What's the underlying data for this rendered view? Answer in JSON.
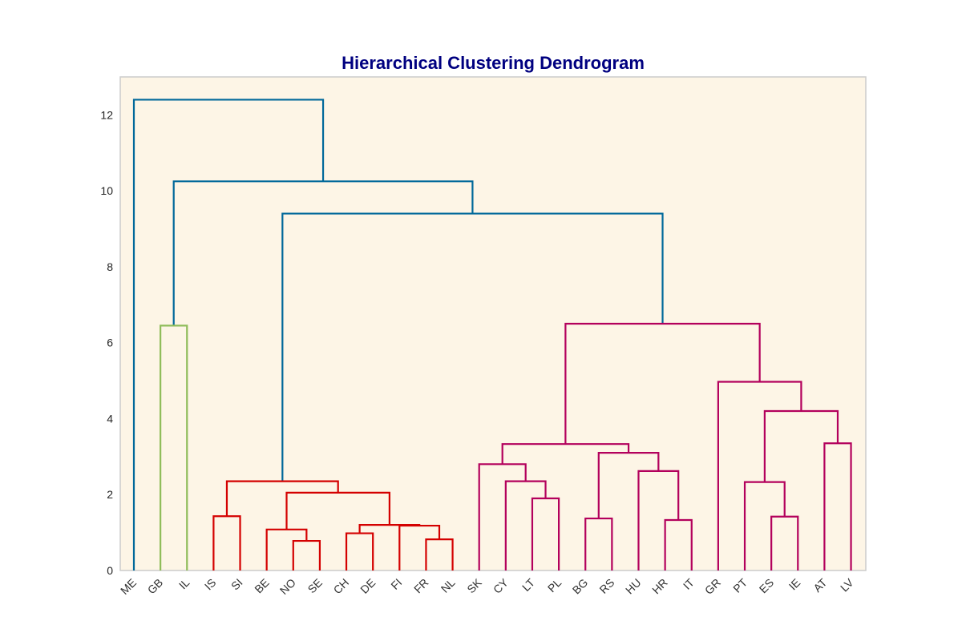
{
  "chart_data": {
    "type": "dendrogram",
    "title": "Hierarchical Clustering Dendrogram",
    "xlabel": "",
    "ylabel": "",
    "ylim": [
      0,
      13
    ],
    "yticks": [
      0,
      2,
      4,
      6,
      8,
      10,
      12
    ],
    "grid": false,
    "background_color": "#fdf5e6",
    "leaves": [
      "ME",
      "GB",
      "IL",
      "IS",
      "SI",
      "BE",
      "NO",
      "SE",
      "CH",
      "DE",
      "FI",
      "FR",
      "NL",
      "SK",
      "CY",
      "LT",
      "PL",
      "BG",
      "RS",
      "HU",
      "HR",
      "IT",
      "GR",
      "PT",
      "ES",
      "IE",
      "AT",
      "LV"
    ],
    "cluster_colors": {
      "green": "#8fbc5a",
      "red": "#d40000",
      "magenta": "#b3005c",
      "above_threshold": "#00689a"
    },
    "merges": [
      {
        "left": "leaf:ME",
        "right": "c2",
        "height": 12.4,
        "color": "above_threshold"
      },
      {
        "id": "c2",
        "left": "c_gbil",
        "right": "c3",
        "height": 10.25,
        "color": "above_threshold"
      },
      {
        "id": "c3",
        "left": "c_red",
        "right": "c_mag",
        "height": 9.4,
        "color": "above_threshold"
      },
      {
        "id": "c_gbil",
        "left": "leaf:GB",
        "right": "leaf:IL",
        "height": 6.45,
        "color": "green"
      },
      {
        "id": "c_red",
        "left": "c_issi",
        "right": "c_red2",
        "height": 2.35,
        "color": "red"
      },
      {
        "id": "c_issi",
        "left": "leaf:IS",
        "right": "leaf:SI",
        "height": 1.43,
        "color": "red"
      },
      {
        "id": "c_red2",
        "left": "c_benose",
        "right": "c_red3",
        "height": 2.05,
        "color": "red"
      },
      {
        "id": "c_benose",
        "left": "leaf:BE",
        "right": "c_nose",
        "height": 1.08,
        "color": "red"
      },
      {
        "id": "c_nose",
        "left": "leaf:NO",
        "right": "leaf:SE",
        "height": 0.78,
        "color": "red"
      },
      {
        "id": "c_red3",
        "left": "c_chde",
        "right": "c_red4",
        "height": 1.2,
        "color": "red"
      },
      {
        "id": "c_chde",
        "left": "leaf:CH",
        "right": "leaf:DE",
        "height": 0.98,
        "color": "red"
      },
      {
        "id": "c_red4",
        "left": "leaf:FI",
        "right": "c_frnl",
        "height": 1.18,
        "color": "red"
      },
      {
        "id": "c_frnl",
        "left": "leaf:FR",
        "right": "leaf:NL",
        "height": 0.82,
        "color": "red"
      },
      {
        "id": "c_mag",
        "left": "c_magA",
        "right": "c_magB",
        "height": 6.5,
        "color": "magenta"
      },
      {
        "id": "c_magA",
        "left": "c_skclt",
        "right": "c_east",
        "height": 3.33,
        "color": "magenta"
      },
      {
        "id": "c_skclt",
        "left": "leaf:SK",
        "right": "c_cylt",
        "height": 2.8,
        "color": "magenta"
      },
      {
        "id": "c_cylt",
        "left": "leaf:CY",
        "right": "c_ltpl",
        "height": 2.35,
        "color": "magenta"
      },
      {
        "id": "c_ltpl",
        "left": "leaf:LT",
        "right": "leaf:PL",
        "height": 1.9,
        "color": "magenta"
      },
      {
        "id": "c_east",
        "left": "c_bgrs",
        "right": "c_huit",
        "height": 3.1,
        "color": "magenta"
      },
      {
        "id": "c_bgrs",
        "left": "leaf:BG",
        "right": "leaf:RS",
        "height": 1.37,
        "color": "magenta"
      },
      {
        "id": "c_huit",
        "left": "leaf:HU",
        "right": "c_hrit",
        "height": 2.62,
        "color": "magenta"
      },
      {
        "id": "c_hrit",
        "left": "leaf:HR",
        "right": "leaf:IT",
        "height": 1.33,
        "color": "magenta"
      },
      {
        "id": "c_magB",
        "left": "leaf:GR",
        "right": "c_south",
        "height": 4.97,
        "color": "magenta"
      },
      {
        "id": "c_south",
        "left": "c_ptie",
        "right": "c_atlv",
        "height": 4.2,
        "color": "magenta"
      },
      {
        "id": "c_ptie",
        "left": "leaf:PT",
        "right": "c_esie",
        "height": 2.33,
        "color": "magenta"
      },
      {
        "id": "c_esie",
        "left": "leaf:ES",
        "right": "leaf:IE",
        "height": 1.42,
        "color": "magenta"
      },
      {
        "id": "c_atlv",
        "left": "leaf:AT",
        "right": "leaf:LV",
        "height": 3.35,
        "color": "magenta"
      }
    ]
  }
}
